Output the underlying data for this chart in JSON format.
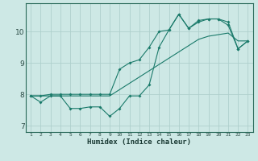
{
  "xlabel": "Humidex (Indice chaleur)",
  "ylabel": "",
  "bg_color": "#cde8e5",
  "grid_color": "#aed0cc",
  "line_color": "#1a7a6a",
  "xlim": [
    0.5,
    23.5
  ],
  "ylim": [
    6.8,
    10.9
  ],
  "xticks": [
    1,
    2,
    3,
    4,
    5,
    6,
    7,
    8,
    9,
    10,
    11,
    12,
    13,
    14,
    15,
    16,
    17,
    18,
    19,
    20,
    21,
    22,
    23
  ],
  "yticks": [
    7,
    8,
    9,
    10
  ],
  "series1": [
    7.95,
    7.75,
    7.95,
    7.95,
    7.55,
    7.55,
    7.6,
    7.6,
    7.3,
    7.55,
    7.95,
    7.95,
    8.3,
    9.5,
    10.05,
    10.55,
    10.1,
    10.3,
    10.4,
    10.4,
    10.2,
    9.45,
    9.7
  ],
  "series2": [
    7.95,
    7.95,
    7.95,
    7.95,
    7.95,
    7.95,
    7.95,
    7.95,
    7.95,
    8.15,
    8.35,
    8.55,
    8.75,
    8.95,
    9.15,
    9.35,
    9.55,
    9.75,
    9.85,
    9.9,
    9.95,
    9.7,
    9.7
  ],
  "series3": [
    7.95,
    7.95,
    8.0,
    8.0,
    8.0,
    8.0,
    8.0,
    8.0,
    8.0,
    8.8,
    9.0,
    9.1,
    9.5,
    10.0,
    10.05,
    10.55,
    10.1,
    10.35,
    10.4,
    10.4,
    10.3,
    9.45,
    9.7
  ]
}
